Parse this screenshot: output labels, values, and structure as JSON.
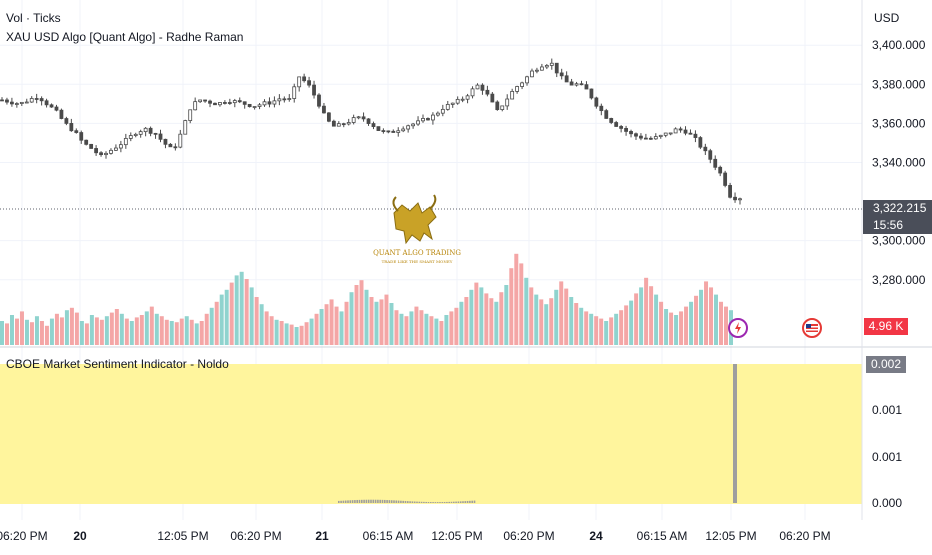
{
  "header": {
    "line1": "Vol · Ticks",
    "line2": "XAU USD Algo [Quant Algo] - Radhe Raman",
    "currency": "USD"
  },
  "price_tag": {
    "price": "3,322.215",
    "countdown": "15:56"
  },
  "volume_tag": "4.96 K",
  "indicator": {
    "title": "CBOE Market Sentiment Indicator - Noldo",
    "value_tag": "0.002"
  },
  "watermark": {
    "line1": "QUANT ALGO TRADING",
    "line2": "TRADE LIKE THE SMART MONEY"
  },
  "colors": {
    "up": "#26a69a",
    "down": "#ef5350",
    "candle": "#4a4a4a",
    "vol_up": "#8fd3ce",
    "vol_down": "#f4a6a6",
    "indicator_fill": "#fff59d"
  },
  "chart_data": [
    {
      "type": "candlestick",
      "title": "XAU USD Algo [Quant Algo] - Radhe Raman",
      "ylim": [
        3285,
        3418
      ],
      "y_ticks": [
        "3,400.000",
        "3,380.000",
        "3,360.000",
        "3,340.000",
        "3,300.000",
        "3,280.000"
      ],
      "x_ticks": [
        "06:20 PM",
        "20",
        "12:05 PM",
        "06:20 PM",
        "21",
        "06:15 AM",
        "12:05 PM",
        "06:20 PM",
        "24",
        "06:15 AM",
        "12:05 PM",
        "06:20 PM"
      ],
      "close_path": [
        3372,
        3371,
        3370,
        3372,
        3374,
        3370,
        3366,
        3360,
        3356,
        3350,
        3347,
        3343,
        3346,
        3349,
        3352,
        3356,
        3357,
        3355,
        3350,
        3346,
        3356,
        3369,
        3372,
        3371,
        3370,
        3372,
        3371,
        3370,
        3369,
        3370,
        3371,
        3373,
        3372,
        3384,
        3380,
        3372,
        3362,
        3358,
        3360,
        3362,
        3363,
        3360,
        3356,
        3355,
        3357,
        3359,
        3360,
        3362,
        3364,
        3368,
        3370,
        3372,
        3376,
        3380,
        3374,
        3366,
        3372,
        3378,
        3382,
        3387,
        3390,
        3391,
        3384,
        3380,
        3380,
        3377,
        3370,
        3364,
        3360,
        3357,
        3354,
        3353,
        3352,
        3353,
        3355,
        3357,
        3356,
        3352,
        3346,
        3340,
        3333,
        3322,
        3322
      ]
    },
    {
      "type": "bar",
      "title": "Vol · Ticks",
      "values": [
        2.0,
        1.8,
        2.5,
        2.2,
        2.8,
        2.1,
        1.9,
        2.4,
        2.0,
        1.6,
        2.2,
        2.6,
        2.3,
        2.9,
        3.1,
        2.7,
        2.0,
        1.8,
        2.5,
        2.3,
        2.1,
        2.4,
        2.7,
        3.0,
        2.6,
        2.2,
        2.0,
        2.3,
        2.5,
        2.8,
        3.2,
        2.6,
        2.4,
        2.1,
        2.0,
        1.9,
        2.2,
        2.4,
        2.1,
        1.8,
        2.0,
        2.6,
        3.1,
        3.6,
        4.2,
        4.6,
        5.2,
        5.8,
        6.1,
        5.5,
        4.8,
        4.0,
        3.4,
        2.8,
        2.4,
        2.1,
        2.0,
        1.8,
        1.7,
        1.5,
        1.6,
        1.9,
        2.2,
        2.6,
        3.0,
        3.4,
        3.8,
        3.2,
        2.8,
        3.6,
        4.4,
        5.0,
        5.4,
        4.6,
        4.0,
        3.6,
        3.8,
        4.2,
        3.5,
        2.9,
        2.6,
        2.4,
        2.8,
        3.2,
        2.9,
        2.6,
        2.4,
        2.2,
        2.0,
        2.5,
        2.8,
        3.1,
        3.6,
        4.0,
        4.6,
        5.2,
        4.8,
        4.3,
        3.9,
        3.6,
        4.4,
        5.0,
        6.4,
        7.6,
        6.8,
        5.6,
        4.8,
        4.2,
        3.8,
        3.4,
        3.9,
        4.6,
        5.3,
        4.7,
        4.0,
        3.5,
        3.1,
        2.8,
        2.6,
        2.4,
        2.2,
        2.0,
        2.3,
        2.6,
        2.9,
        3.3,
        3.7,
        4.3,
        4.8,
        5.6,
        4.9,
        4.2,
        3.6,
        3.0,
        2.7,
        2.5,
        2.8,
        3.2,
        3.6,
        4.1,
        4.6,
        5.3,
        4.8,
        4.2,
        3.6,
        3.2,
        2.9
      ],
      "up_flags": [
        1,
        0,
        1,
        0,
        0,
        1,
        0,
        1,
        0,
        0,
        1,
        0,
        0,
        1,
        0,
        0,
        1,
        0,
        1,
        0,
        0,
        1,
        0,
        0,
        1,
        0,
        1,
        0,
        0,
        1,
        0,
        1,
        0,
        0,
        1,
        0,
        0,
        1,
        0,
        1,
        0,
        0,
        1,
        0,
        1,
        1,
        0,
        1,
        1,
        0,
        1,
        0,
        1,
        0,
        0,
        1,
        0,
        1,
        0,
        1,
        0,
        0,
        1,
        0,
        1,
        0,
        0,
        0,
        1,
        0,
        1,
        0,
        0,
        1,
        0,
        1,
        0,
        0,
        1,
        0,
        1,
        0,
        1,
        0,
        0,
        1,
        0,
        1,
        0,
        1,
        0,
        0,
        1,
        0,
        1,
        0,
        1,
        0,
        0,
        1,
        0,
        1,
        0,
        0,
        0,
        1,
        0,
        1,
        0,
        1,
        0,
        1,
        0,
        0,
        1,
        0,
        1,
        0,
        1,
        0,
        0,
        1,
        0,
        1,
        0,
        0,
        1,
        0,
        1,
        0,
        0,
        1,
        0,
        1,
        0,
        1,
        0,
        0,
        1,
        0,
        1,
        0,
        0,
        1,
        0,
        0,
        1
      ]
    },
    {
      "type": "area",
      "title": "CBOE Market Sentiment Indicator - Noldo",
      "ylim": [
        0,
        0.002
      ],
      "y_ticks": [
        "0.002",
        "0.001",
        "0.001",
        "0.000"
      ],
      "spike_value": 0.002
    }
  ]
}
